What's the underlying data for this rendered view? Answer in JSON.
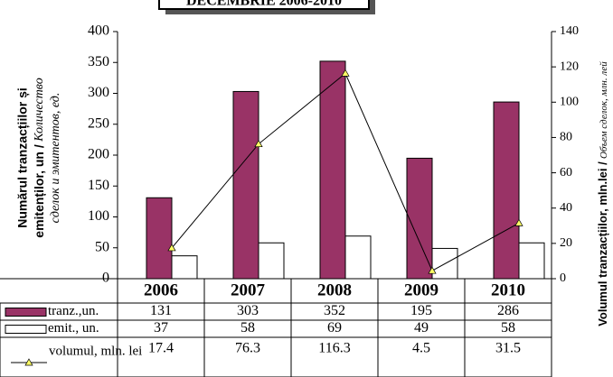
{
  "chart_data": {
    "type": "bar",
    "title": "DECEMBRIE 2006-2010",
    "ylabel": [
      "Numărul tranzacțiilor și",
      "emitenților, un /",
      "Количество",
      "сделок и эмитентов, ед."
    ],
    "y2label": [
      "Volumul tranzacțiilor, mln.lei /",
      "Объем сделок, млн. лей"
    ],
    "categories": [
      "2006",
      "2007",
      "2008",
      "2009",
      "2010"
    ],
    "series": [
      {
        "name": "tranz.,un.",
        "type": "bar",
        "color": "#993366",
        "values": [
          131,
          303,
          352,
          195,
          286
        ]
      },
      {
        "name": "emit., un.",
        "type": "bar",
        "color": "#ffffff",
        "values": [
          37,
          58,
          69,
          49,
          58
        ]
      },
      {
        "name": "volumul, mln. lei",
        "type": "line",
        "axis": "y2",
        "color": "#000000",
        "marker_color": "#ffff66",
        "values": [
          17.4,
          76.3,
          116.3,
          4.5,
          31.5
        ]
      }
    ],
    "ylim": [
      0,
      400
    ],
    "yticks": [
      0,
      50,
      100,
      150,
      200,
      250,
      300,
      350,
      400
    ],
    "y2lim": [
      0,
      140
    ],
    "y2ticks": [
      0,
      20,
      40,
      60,
      80,
      100,
      120,
      140
    ],
    "grid": false
  }
}
